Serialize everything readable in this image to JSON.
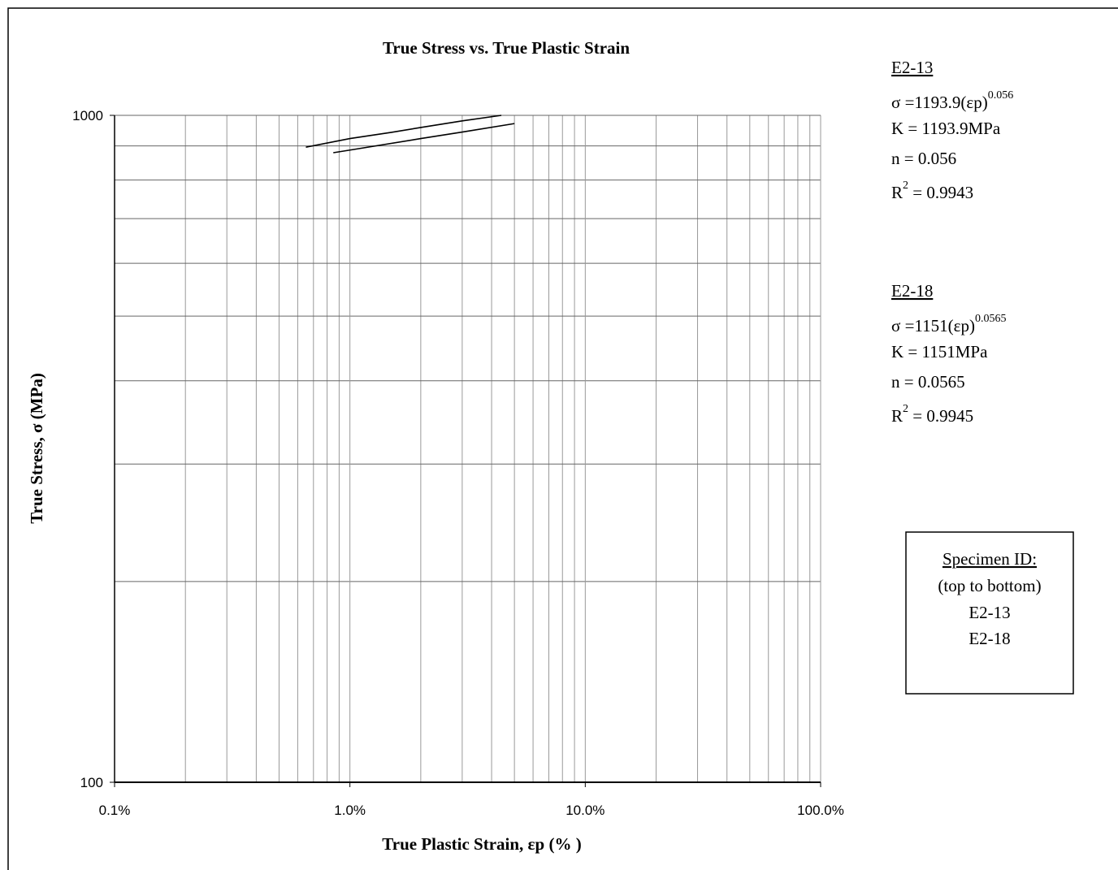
{
  "chart_data": {
    "type": "line",
    "title": "True Stress vs. True Plastic Strain",
    "xlabel": "True Plastic Strain, εp (% )",
    "ylabel": "True Stress, σ  (MPa)",
    "xscale": "log",
    "yscale": "log",
    "grid": true,
    "xlim": [
      0.1,
      100
    ],
    "xticks": [
      {
        "value": 0.1,
        "label": "0.1%"
      },
      {
        "value": 1,
        "label": "1.0%"
      },
      {
        "value": 10,
        "label": "10.0%"
      },
      {
        "value": 100,
        "label": "100.0%"
      }
    ],
    "ylim": [
      100,
      1000
    ],
    "yticks": [
      100,
      1000
    ],
    "series": [
      {
        "name": "E2-13",
        "color": "#000000",
        "x": [
          0.65,
          1,
          1.5,
          2,
          3,
          4.4
        ],
        "values": [
          896,
          923,
          943,
          959,
          981,
          1000
        ]
      },
      {
        "name": "E2-18",
        "color": "#000000",
        "x": [
          0.85,
          1,
          2,
          3,
          5
        ],
        "values": [
          879,
          887,
          923,
          944,
          972
        ]
      }
    ],
    "equations": [
      {
        "formula": "σ =1193.9(εp)",
        "exponent": "0.056",
        "K": "K = 1193.9MPa",
        "n": "n = 0.056",
        "r": "R",
        "r_exp": "2",
        "r_value": " = 0.9943"
      },
      {
        "formula": "σ =1151(εp)",
        "exponent": "0.0565",
        "K": "K = 1151MPa",
        "n": "n = 0.0565",
        "r": "R",
        "r_exp": "2",
        "r_value": "  = 0.9945"
      }
    ],
    "legend": {
      "title": "Specimen ID:",
      "subtitle": "(top to bottom)"
    }
  }
}
